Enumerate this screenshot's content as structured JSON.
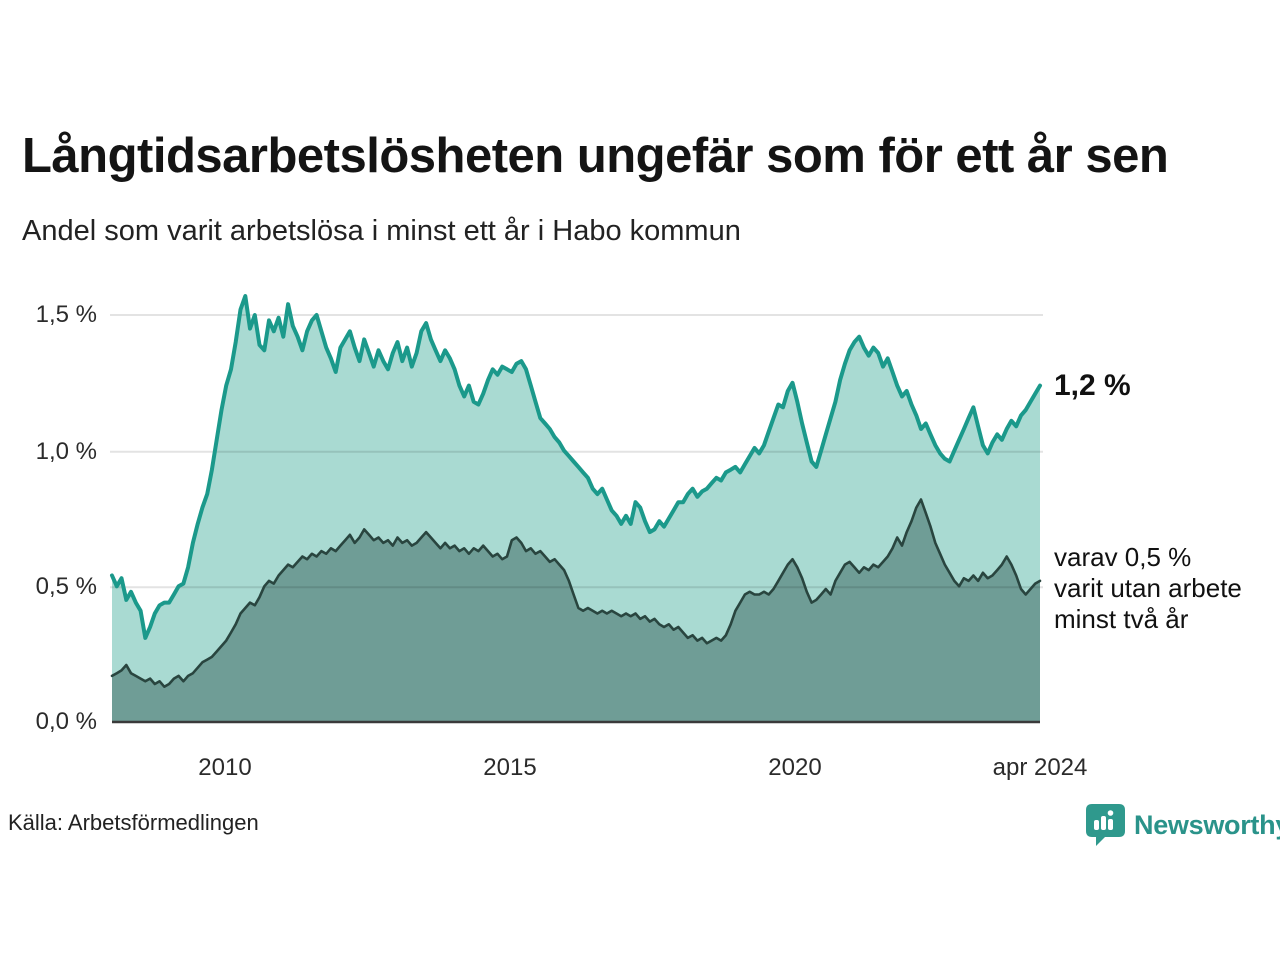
{
  "header": {
    "title": "Långtidsarbetslösheten ungefär som för ett år sen",
    "subtitle": "Andel som varit arbetslösa i minst ett år i Habo kommun"
  },
  "chart_data": {
    "type": "area",
    "title": "Långtidsarbetslösheten ungefär som för ett år sen",
    "subtitle": "Andel som varit arbetslösa i minst ett år i Habo kommun",
    "unit": "%",
    "frequency": "monthly",
    "x_start": "2008-01",
    "x_end": "2024-04",
    "ylim": [
      0,
      1.575
    ],
    "grid": true,
    "y_tick_labels": [
      "1,5 %",
      "1,0 %",
      "0,5 %",
      "0,0 %"
    ],
    "y_tick_values": [
      1.5,
      1.0,
      0.5,
      0.0
    ],
    "x_tick_labels": [
      "2010",
      "2015",
      "2020",
      "apr 2024"
    ],
    "colors": {
      "line_1yr": "#1b998b",
      "fill_1yr": "#a9dad2",
      "line_2yr": "#29453f",
      "fill_2yr": "#6f9d96",
      "grid": "rgba(0,0,0,0.11)",
      "axis": "#3a3a3a"
    },
    "series": [
      {
        "name": "Arbetslösa minst ett år",
        "end_value_label": "1,2 %",
        "values": [
          0.54,
          0.5,
          0.53,
          0.45,
          0.48,
          0.44,
          0.41,
          0.31,
          0.35,
          0.4,
          0.43,
          0.44,
          0.44,
          0.47,
          0.5,
          0.51,
          0.57,
          0.66,
          0.73,
          0.79,
          0.84,
          0.93,
          1.04,
          1.15,
          1.24,
          1.3,
          1.4,
          1.52,
          1.57,
          1.45,
          1.5,
          1.39,
          1.37,
          1.48,
          1.44,
          1.49,
          1.42,
          1.54,
          1.46,
          1.42,
          1.37,
          1.44,
          1.48,
          1.5,
          1.44,
          1.38,
          1.34,
          1.29,
          1.38,
          1.41,
          1.44,
          1.38,
          1.33,
          1.41,
          1.36,
          1.31,
          1.37,
          1.33,
          1.3,
          1.36,
          1.4,
          1.33,
          1.38,
          1.31,
          1.36,
          1.44,
          1.47,
          1.41,
          1.37,
          1.33,
          1.37,
          1.34,
          1.3,
          1.24,
          1.2,
          1.24,
          1.18,
          1.17,
          1.21,
          1.26,
          1.3,
          1.28,
          1.31,
          1.3,
          1.29,
          1.32,
          1.33,
          1.3,
          1.24,
          1.18,
          1.12,
          1.1,
          1.08,
          1.05,
          1.03,
          1.0,
          0.98,
          0.96,
          0.94,
          0.92,
          0.9,
          0.86,
          0.84,
          0.86,
          0.82,
          0.78,
          0.76,
          0.73,
          0.76,
          0.73,
          0.81,
          0.79,
          0.74,
          0.7,
          0.71,
          0.74,
          0.72,
          0.75,
          0.78,
          0.81,
          0.81,
          0.84,
          0.86,
          0.83,
          0.85,
          0.86,
          0.88,
          0.9,
          0.89,
          0.92,
          0.93,
          0.94,
          0.92,
          0.95,
          0.98,
          1.01,
          0.99,
          1.02,
          1.07,
          1.12,
          1.17,
          1.16,
          1.22,
          1.25,
          1.18,
          1.1,
          1.03,
          0.96,
          0.94,
          1.0,
          1.06,
          1.12,
          1.18,
          1.26,
          1.32,
          1.37,
          1.4,
          1.42,
          1.38,
          1.35,
          1.38,
          1.36,
          1.31,
          1.34,
          1.29,
          1.24,
          1.2,
          1.22,
          1.17,
          1.13,
          1.08,
          1.1,
          1.06,
          1.02,
          0.99,
          0.97,
          0.96,
          1.0,
          1.04,
          1.08,
          1.12,
          1.16,
          1.09,
          1.02,
          0.99,
          1.03,
          1.06,
          1.04,
          1.08,
          1.11,
          1.09,
          1.13,
          1.15,
          1.18,
          1.21,
          1.24
        ]
      },
      {
        "name": "Utan arbete minst två år",
        "end_value_label": "0,5 %",
        "values": [
          0.17,
          0.18,
          0.19,
          0.21,
          0.18,
          0.17,
          0.16,
          0.15,
          0.16,
          0.14,
          0.15,
          0.13,
          0.14,
          0.16,
          0.17,
          0.15,
          0.17,
          0.18,
          0.2,
          0.22,
          0.23,
          0.24,
          0.26,
          0.28,
          0.3,
          0.33,
          0.36,
          0.4,
          0.42,
          0.44,
          0.43,
          0.46,
          0.5,
          0.52,
          0.51,
          0.54,
          0.56,
          0.58,
          0.57,
          0.59,
          0.61,
          0.6,
          0.62,
          0.61,
          0.63,
          0.62,
          0.64,
          0.63,
          0.65,
          0.67,
          0.69,
          0.66,
          0.68,
          0.71,
          0.69,
          0.67,
          0.68,
          0.66,
          0.67,
          0.65,
          0.68,
          0.66,
          0.67,
          0.65,
          0.66,
          0.68,
          0.7,
          0.68,
          0.66,
          0.64,
          0.66,
          0.64,
          0.65,
          0.63,
          0.64,
          0.62,
          0.64,
          0.63,
          0.65,
          0.63,
          0.61,
          0.62,
          0.6,
          0.61,
          0.67,
          0.68,
          0.66,
          0.63,
          0.64,
          0.62,
          0.63,
          0.61,
          0.59,
          0.6,
          0.58,
          0.56,
          0.52,
          0.47,
          0.42,
          0.41,
          0.42,
          0.41,
          0.4,
          0.41,
          0.4,
          0.41,
          0.4,
          0.39,
          0.4,
          0.39,
          0.4,
          0.38,
          0.39,
          0.37,
          0.38,
          0.36,
          0.35,
          0.36,
          0.34,
          0.35,
          0.33,
          0.31,
          0.32,
          0.3,
          0.31,
          0.29,
          0.3,
          0.31,
          0.3,
          0.32,
          0.36,
          0.41,
          0.44,
          0.47,
          0.48,
          0.47,
          0.47,
          0.48,
          0.47,
          0.49,
          0.52,
          0.55,
          0.58,
          0.6,
          0.57,
          0.53,
          0.48,
          0.44,
          0.45,
          0.47,
          0.49,
          0.47,
          0.52,
          0.55,
          0.58,
          0.59,
          0.57,
          0.55,
          0.57,
          0.56,
          0.58,
          0.57,
          0.59,
          0.61,
          0.64,
          0.68,
          0.65,
          0.7,
          0.74,
          0.79,
          0.82,
          0.77,
          0.72,
          0.66,
          0.62,
          0.58,
          0.55,
          0.52,
          0.5,
          0.53,
          0.52,
          0.54,
          0.52,
          0.55,
          0.53,
          0.54,
          0.56,
          0.58,
          0.61,
          0.58,
          0.54,
          0.49,
          0.47,
          0.49,
          0.51,
          0.52
        ]
      }
    ],
    "annotations": {
      "end_label": "1,2 %",
      "secondary_line1": "varav 0,5 %",
      "secondary_line2": "varit utan arbete",
      "secondary_line3": "minst två år"
    },
    "legend_position": "right-inline"
  },
  "footer": {
    "source": "Källa: Arbetsförmedlingen",
    "brand": "Newsworthy"
  }
}
